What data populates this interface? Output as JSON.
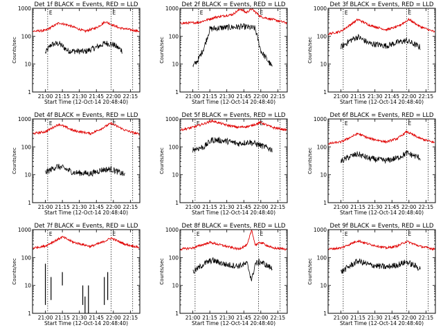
{
  "chart_data": [
    {
      "type": "line",
      "title": "Det 1f BLACK = Events, RED = LLD",
      "xlabel": "Start Time (12-Oct-14 20:48:40)",
      "ylabel": "Counts/sec",
      "x_ticks": [
        "21:00",
        "21:15",
        "21:30",
        "21:45",
        "22:00",
        "22:15"
      ],
      "y_ticks": [
        "1",
        "10",
        "100",
        "1000"
      ],
      "ylim": [
        1,
        1000
      ],
      "yscale": "log",
      "xlim": [
        "20:48:40",
        "22:23:20"
      ],
      "vlines": [
        "21:02",
        "21:58",
        "22:17"
      ],
      "markers": [
        "E",
        "E"
      ],
      "black_range": [
        "21:00",
        "22:10"
      ],
      "series": [
        {
          "color": "#000000",
          "points": [
            [
              "21:00",
              25
            ],
            [
              "21:05",
              50
            ],
            [
              "21:12",
              55
            ],
            [
              "21:20",
              30
            ],
            [
              "21:35",
              28
            ],
            [
              "21:45",
              40
            ],
            [
              "21:53",
              57
            ],
            [
              "22:00",
              50
            ],
            [
              "22:08",
              30
            ]
          ]
        },
        {
          "color": "#e00000",
          "points": [
            [
              "20:49",
              150
            ],
            [
              "21:00",
              160
            ],
            [
              "21:12",
              300
            ],
            [
              "21:20",
              250
            ],
            [
              "21:35",
              150
            ],
            [
              "21:45",
              200
            ],
            [
              "21:53",
              330
            ],
            [
              "22:05",
              200
            ],
            [
              "22:23",
              150
            ]
          ]
        }
      ]
    },
    {
      "type": "line",
      "title": "Det 2f BLACK = Events, RED = LLD",
      "xlabel": "Start Time (12-Oct-14 20:48:40)",
      "ylabel": "Counts/sec",
      "x_ticks": [
        "21:00",
        "21:15",
        "21:30",
        "21:45",
        "22:00",
        "22:15"
      ],
      "y_ticks": [
        "1",
        "10",
        "100",
        "1000"
      ],
      "ylim": [
        1,
        1000
      ],
      "yscale": "log",
      "xlim": [
        "20:48:40",
        "22:23:20"
      ],
      "vlines": [
        "21:05",
        "21:58",
        "22:17"
      ],
      "markers": [
        "E",
        "E"
      ],
      "black_range": [
        "21:00",
        "22:10"
      ],
      "series": [
        {
          "color": "#000000",
          "points": [
            [
              "21:00",
              8
            ],
            [
              "21:05",
              15
            ],
            [
              "21:10",
              40
            ],
            [
              "21:15",
              180
            ],
            [
              "21:25",
              200
            ],
            [
              "21:45",
              220
            ],
            [
              "21:55",
              190
            ],
            [
              "22:00",
              30
            ],
            [
              "22:10",
              8
            ]
          ]
        },
        {
          "color": "#e00000",
          "points": [
            [
              "20:49",
              290
            ],
            [
              "21:05",
              310
            ],
            [
              "21:20",
              480
            ],
            [
              "21:35",
              600
            ],
            [
              "21:42",
              950
            ],
            [
              "21:47",
              700
            ],
            [
              "21:52",
              950
            ],
            [
              "22:00",
              500
            ],
            [
              "22:23",
              300
            ]
          ]
        }
      ]
    },
    {
      "type": "line",
      "title": "Det 3f BLACK = Events, RED = LLD",
      "xlabel": "Start Time (12-Oct-14 20:48:40)",
      "ylabel": "Counts/sec",
      "x_ticks": [
        "21:00",
        "21:15",
        "21:30",
        "21:45",
        "22:00",
        "22:15"
      ],
      "y_ticks": [
        "1",
        "10",
        "100",
        "1000"
      ],
      "ylim": [
        1,
        1000
      ],
      "yscale": "log",
      "xlim": [
        "20:48:40",
        "22:23:20"
      ],
      "vlines": [
        "21:02",
        "21:58",
        "22:17"
      ],
      "markers": [
        "E",
        "E"
      ],
      "black_range": [
        "21:00",
        "22:10"
      ],
      "series": [
        {
          "color": "#000000",
          "points": [
            [
              "21:00",
              40
            ],
            [
              "21:08",
              70
            ],
            [
              "21:15",
              95
            ],
            [
              "21:25",
              55
            ],
            [
              "21:40",
              45
            ],
            [
              "21:50",
              60
            ],
            [
              "21:58",
              70
            ],
            [
              "22:10",
              40
            ]
          ]
        },
        {
          "color": "#e00000",
          "points": [
            [
              "20:49",
              120
            ],
            [
              "21:00",
              150
            ],
            [
              "21:15",
              400
            ],
            [
              "21:25",
              250
            ],
            [
              "21:40",
              170
            ],
            [
              "21:50",
              220
            ],
            [
              "22:00",
              400
            ],
            [
              "22:10",
              220
            ],
            [
              "22:23",
              140
            ]
          ]
        }
      ]
    },
    {
      "type": "line",
      "title": "Det 4f BLACK = Events, RED = LLD",
      "xlabel": "Start Time (12-Oct-14 20:48:40)",
      "ylabel": "Counts/sec",
      "x_ticks": [
        "21:00",
        "21:15",
        "21:30",
        "21:45",
        "22:00",
        "22:15"
      ],
      "y_ticks": [
        "1",
        "10",
        "100",
        "1000"
      ],
      "ylim": [
        1,
        1000
      ],
      "yscale": "log",
      "xlim": [
        "20:48:40",
        "22:23:20"
      ],
      "vlines": [
        "21:02",
        "21:58",
        "22:17"
      ],
      "markers": [
        "E",
        "E"
      ],
      "black_range": [
        "21:00",
        "22:10"
      ],
      "series": [
        {
          "color": "#000000",
          "points": [
            [
              "21:00",
              12
            ],
            [
              "21:10",
              20
            ],
            [
              "21:15",
              18
            ],
            [
              "21:25",
              12
            ],
            [
              "21:40",
              11
            ],
            [
              "21:50",
              15
            ],
            [
              "21:58",
              16
            ],
            [
              "22:10",
              10
            ]
          ]
        },
        {
          "color": "#e00000",
          "points": [
            [
              "20:49",
              300
            ],
            [
              "21:00",
              350
            ],
            [
              "21:12",
              650
            ],
            [
              "21:25",
              380
            ],
            [
              "21:40",
              300
            ],
            [
              "21:48",
              420
            ],
            [
              "21:58",
              700
            ],
            [
              "22:10",
              400
            ],
            [
              "22:23",
              280
            ]
          ]
        }
      ]
    },
    {
      "type": "line",
      "title": "Det 5f BLACK = Events, RED = LLD",
      "xlabel": "Start Time (12-Oct-14 20:48:40)",
      "ylabel": "Counts/sec",
      "x_ticks": [
        "21:00",
        "21:15",
        "21:30",
        "21:45",
        "22:00",
        "22:15"
      ],
      "y_ticks": [
        "1",
        "10",
        "100",
        "1000"
      ],
      "ylim": [
        1,
        1000
      ],
      "yscale": "log",
      "xlim": [
        "20:48:40",
        "22:23:20"
      ],
      "vlines": [
        "21:02",
        "21:58",
        "22:17"
      ],
      "markers": [
        "E",
        "E"
      ],
      "black_range": [
        "21:00",
        "22:10"
      ],
      "series": [
        {
          "color": "#000000",
          "points": [
            [
              "21:00",
              80
            ],
            [
              "21:10",
              100
            ],
            [
              "21:17",
              180
            ],
            [
              "21:30",
              160
            ],
            [
              "21:40",
              130
            ],
            [
              "21:50",
              150
            ],
            [
              "21:58",
              120
            ],
            [
              "22:10",
              80
            ]
          ]
        },
        {
          "color": "#e00000",
          "points": [
            [
              "20:49",
              400
            ],
            [
              "21:00",
              500
            ],
            [
              "21:17",
              850
            ],
            [
              "21:30",
              600
            ],
            [
              "21:40",
              500
            ],
            [
              "21:50",
              550
            ],
            [
              "22:00",
              750
            ],
            [
              "22:10",
              500
            ],
            [
              "22:23",
              400
            ]
          ]
        }
      ]
    },
    {
      "type": "line",
      "title": "Det 6f BLACK = Events, RED = LLD",
      "xlabel": "Start Time (12-Oct-14 20:48:40)",
      "ylabel": "Counts/sec",
      "x_ticks": [
        "21:00",
        "21:15",
        "21:30",
        "21:45",
        "22:00",
        "22:15"
      ],
      "y_ticks": [
        "1",
        "10",
        "100",
        "1000"
      ],
      "ylim": [
        1,
        1000
      ],
      "yscale": "log",
      "xlim": [
        "20:48:40",
        "22:23:20"
      ],
      "vlines": [
        "21:02",
        "21:58",
        "22:17"
      ],
      "markers": [
        "E",
        "E"
      ],
      "black_range": [
        "21:00",
        "22:10"
      ],
      "series": [
        {
          "color": "#000000",
          "points": [
            [
              "21:00",
              30
            ],
            [
              "21:08",
              45
            ],
            [
              "21:15",
              55
            ],
            [
              "21:25",
              38
            ],
            [
              "21:40",
              32
            ],
            [
              "21:50",
              40
            ],
            [
              "21:58",
              60
            ],
            [
              "22:10",
              40
            ]
          ]
        },
        {
          "color": "#e00000",
          "points": [
            [
              "20:49",
              130
            ],
            [
              "21:00",
              150
            ],
            [
              "21:15",
              300
            ],
            [
              "21:25",
              200
            ],
            [
              "21:40",
              150
            ],
            [
              "21:50",
              200
            ],
            [
              "21:58",
              350
            ],
            [
              "22:10",
              200
            ],
            [
              "22:23",
              140
            ]
          ]
        }
      ]
    },
    {
      "type": "line",
      "title": "Det 7f BLACK = Events, RED = LLD",
      "xlabel": "Start Time (12-Oct-14 20:48:40)",
      "ylabel": "Counts/sec",
      "x_ticks": [
        "21:00",
        "21:15",
        "21:30",
        "21:45",
        "22:00",
        "22:15"
      ],
      "y_ticks": [
        "1",
        "10",
        "100",
        "1000"
      ],
      "ylim": [
        1,
        1000
      ],
      "yscale": "log",
      "xlim": [
        "20:48:40",
        "22:23:20"
      ],
      "vlines": [
        "21:02",
        "21:58",
        "22:17"
      ],
      "markers": [
        "E",
        "E"
      ],
      "black_range": [
        "21:00",
        "22:10"
      ],
      "spikes": [
        [
          "21:00",
          2,
          60
        ],
        [
          "21:05",
          3,
          20
        ],
        [
          "21:15",
          10,
          30
        ],
        [
          "21:33",
          2,
          10
        ],
        [
          "21:35",
          1,
          4
        ],
        [
          "21:38",
          1,
          10
        ],
        [
          "21:52",
          2,
          20
        ],
        [
          "21:55",
          3,
          30
        ]
      ],
      "series": [
        {
          "color": "#e00000",
          "points": [
            [
              "20:49",
              220
            ],
            [
              "21:00",
              260
            ],
            [
              "21:15",
              550
            ],
            [
              "21:25",
              350
            ],
            [
              "21:40",
              250
            ],
            [
              "21:50",
              350
            ],
            [
              "21:58",
              500
            ],
            [
              "22:10",
              300
            ],
            [
              "22:23",
              230
            ]
          ]
        }
      ]
    },
    {
      "type": "line",
      "title": "Det 8f BLACK = Events, RED = LLD",
      "xlabel": "Start Time (12-Oct-14 20:48:40)",
      "ylabel": "Counts/sec",
      "x_ticks": [
        "21:00",
        "21:15",
        "21:30",
        "21:45",
        "22:00",
        "22:15"
      ],
      "y_ticks": [
        "1",
        "10",
        "100",
        "1000"
      ],
      "ylim": [
        1,
        1000
      ],
      "yscale": "log",
      "xlim": [
        "20:48:40",
        "22:23:20"
      ],
      "vlines": [
        "21:02",
        "21:58",
        "22:17"
      ],
      "markers": [
        "E",
        "E"
      ],
      "black_range": [
        "21:00",
        "22:10"
      ],
      "series": [
        {
          "color": "#000000",
          "points": [
            [
              "21:00",
              30
            ],
            [
              "21:10",
              60
            ],
            [
              "21:17",
              80
            ],
            [
              "21:30",
              55
            ],
            [
              "21:40",
              50
            ],
            [
              "21:48",
              60
            ],
            [
              "21:52",
              15
            ],
            [
              "21:55",
              60
            ],
            [
              "22:00",
              70
            ],
            [
              "22:10",
              40
            ]
          ]
        },
        {
          "color": "#e00000",
          "points": [
            [
              "20:49",
              200
            ],
            [
              "21:00",
              220
            ],
            [
              "21:15",
              350
            ],
            [
              "21:30",
              250
            ],
            [
              "21:40",
              200
            ],
            [
              "21:48",
              280
            ],
            [
              "21:52",
              1000
            ],
            [
              "21:55",
              280
            ],
            [
              "22:00",
              350
            ],
            [
              "22:10",
              220
            ],
            [
              "22:23",
              200
            ]
          ]
        }
      ]
    },
    {
      "type": "line",
      "title": "Det 9f BLACK = Events, RED = LLD",
      "xlabel": "Start Time (12-Oct-14 20:48:40)",
      "ylabel": "Counts/sec",
      "x_ticks": [
        "21:00",
        "21:15",
        "21:30",
        "21:45",
        "22:00",
        "22:15"
      ],
      "y_ticks": [
        "1",
        "10",
        "100",
        "1000"
      ],
      "ylim": [
        1,
        1000
      ],
      "yscale": "log",
      "xlim": [
        "20:48:40",
        "22:23:20"
      ],
      "vlines": [
        "21:02",
        "21:58",
        "22:17"
      ],
      "markers": [
        "E",
        "E"
      ],
      "black_range": [
        "21:00",
        "22:10"
      ],
      "series": [
        {
          "color": "#000000",
          "points": [
            [
              "21:00",
              30
            ],
            [
              "21:08",
              50
            ],
            [
              "21:15",
              75
            ],
            [
              "21:25",
              55
            ],
            [
              "21:40",
              45
            ],
            [
              "21:50",
              55
            ],
            [
              "21:58",
              70
            ],
            [
              "22:10",
              40
            ]
          ]
        },
        {
          "color": "#e00000",
          "points": [
            [
              "20:49",
              200
            ],
            [
              "21:00",
              220
            ],
            [
              "21:15",
              400
            ],
            [
              "21:25",
              300
            ],
            [
              "21:40",
              220
            ],
            [
              "21:50",
              260
            ],
            [
              "21:58",
              380
            ],
            [
              "22:10",
              250
            ],
            [
              "22:23",
              200
            ]
          ]
        }
      ]
    }
  ]
}
